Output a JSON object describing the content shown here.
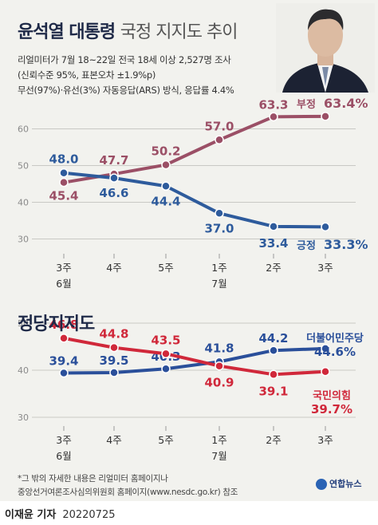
{
  "header": {
    "title": "윤석열 대통령",
    "subtitle": "국정 지지도 추이",
    "survey_lines": [
      "리얼미터가 7월 18~22일 전국 18세 이상 2,527명 조사",
      "(신뢰수준 95%, 표본오차 ±1.9%p)",
      "무선(97%)·유선(3%) 자동응답(ARS) 방식, 응답률 4.4%"
    ]
  },
  "section2_title": "정당지지도",
  "x_labels": [
    {
      "top": "3주",
      "bottom": "6월"
    },
    {
      "top": "4주",
      "bottom": ""
    },
    {
      "top": "5주",
      "bottom": ""
    },
    {
      "top": "1주",
      "bottom": "7월"
    },
    {
      "top": "2주",
      "bottom": ""
    },
    {
      "top": "3주",
      "bottom": ""
    }
  ],
  "chart_data": [
    {
      "type": "line",
      "title": "윤석열 대통령 국정 지지도 추이",
      "categories": [
        "6월 3주",
        "6월 4주",
        "6월 5주",
        "7월 1주",
        "7월 2주",
        "7월 3주"
      ],
      "ylim": [
        30,
        65
      ],
      "yticks": [
        30,
        40,
        50,
        60
      ],
      "grid": true,
      "series": [
        {
          "name": "부정",
          "end_label": "63.4%",
          "color": "#9b4f66",
          "values": [
            45.4,
            47.7,
            50.2,
            57.0,
            63.3,
            63.4
          ],
          "labels": [
            "45.4",
            "47.7",
            "50.2",
            "57.0",
            "63.3",
            ""
          ]
        },
        {
          "name": "긍정",
          "end_label": "33.3%",
          "color": "#2e5b9c",
          "values": [
            48.0,
            46.6,
            44.4,
            37.0,
            33.4,
            33.3
          ],
          "labels": [
            "48.0",
            "46.6",
            "44.4",
            "37.0",
            "33.4",
            ""
          ]
        }
      ]
    },
    {
      "type": "line",
      "title": "정당지지도",
      "categories": [
        "6월 3주",
        "6월 4주",
        "6월 5주",
        "7월 1주",
        "7월 2주",
        "7월 3주"
      ],
      "ylim": [
        30,
        50
      ],
      "yticks": [
        30,
        40,
        50
      ],
      "grid": true,
      "series": [
        {
          "name": "더불어민주당",
          "end_label": "44.6%",
          "color": "#2a4f9a",
          "values": [
            39.4,
            39.5,
            40.3,
            41.8,
            44.2,
            44.6
          ],
          "labels": [
            "39.4",
            "39.5",
            "40.3",
            "41.8",
            "44.2",
            ""
          ]
        },
        {
          "name": "국민의힘",
          "end_label": "39.7%",
          "color": "#d0283a",
          "values": [
            46.8,
            44.8,
            43.5,
            40.9,
            39.1,
            39.7
          ],
          "labels": [
            "46.8",
            "44.8",
            "43.5",
            "40.9",
            "39.1",
            ""
          ]
        }
      ]
    }
  ],
  "note_lines": [
    "*그 밖의 자세한 내용은 리얼미터 홈페이지나",
    "중앙선거여론조사심의위원회 홈페이지(www.nesdc.go.kr) 참조"
  ],
  "logo_text": "연합뉴스",
  "byline_name": "이재윤 기자",
  "byline_date": "20220725"
}
